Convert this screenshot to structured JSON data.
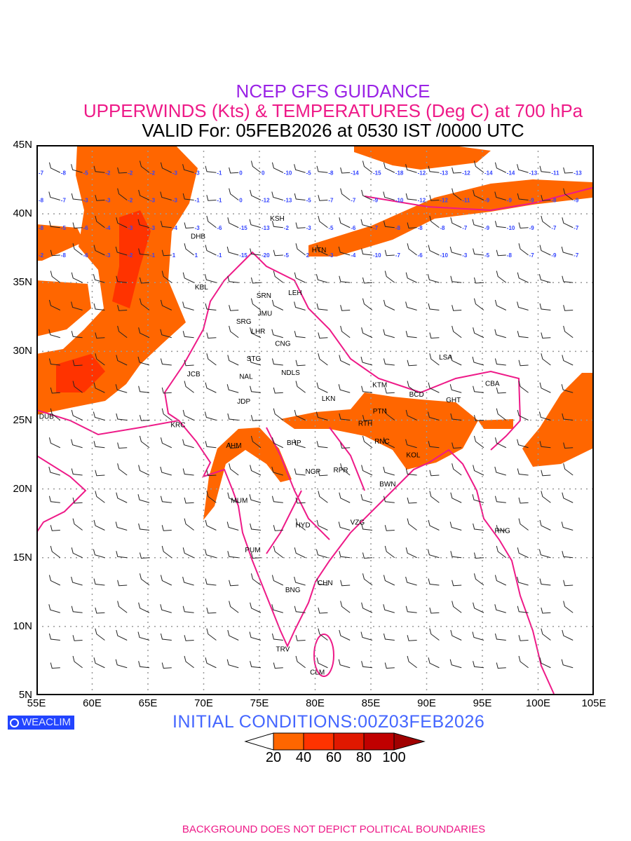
{
  "header": {
    "title": "NCEP GFS GUIDANCE",
    "subtitle": "UPPERWINDS (Kts) & TEMPERATURES (Deg C) at 700 hPa",
    "valid": "VALID For: 05FEB2026 at 0530 IST /0000 UTC"
  },
  "axes": {
    "lat_labels": [
      "45N",
      "40N",
      "35N",
      "30N",
      "25N",
      "20N",
      "15N",
      "10N",
      "5N"
    ],
    "lon_labels": [
      "55E",
      "60E",
      "65E",
      "70E",
      "75E",
      "80E",
      "85E",
      "90E",
      "95E",
      "100E",
      "105E"
    ],
    "lon_range": [
      55,
      105
    ],
    "lat_range": [
      5,
      45
    ]
  },
  "colors": {
    "boundary": "#ee1a88",
    "temperature": "#3344ff",
    "shade": [
      "#ff6600",
      "#ff3300",
      "#e01800",
      "#c00000",
      "#a00000"
    ]
  },
  "cities": [
    {
      "code": "KSH",
      "lon": 76.6,
      "lat": 39.6
    },
    {
      "code": "DHB",
      "lon": 69.5,
      "lat": 38.7
    },
    {
      "code": "HTN",
      "lon": 80.6,
      "lat": 37.4
    },
    {
      "code": "KBL",
      "lon": 69.8,
      "lat": 34.7
    },
    {
      "code": "SRN",
      "lon": 75.4,
      "lat": 34.1
    },
    {
      "code": "LEH",
      "lon": 78.2,
      "lat": 34.3
    },
    {
      "code": "JMU",
      "lon": 75.5,
      "lat": 32.8
    },
    {
      "code": "SRG",
      "lon": 73.6,
      "lat": 32.2
    },
    {
      "code": "LHR",
      "lon": 74.9,
      "lat": 31.7
    },
    {
      "code": "CNG",
      "lon": 77.1,
      "lat": 30.6
    },
    {
      "code": "STG",
      "lon": 74.5,
      "lat": 29.5
    },
    {
      "code": "NAL",
      "lon": 73.8,
      "lat": 28.2
    },
    {
      "code": "JCB",
      "lon": 69.1,
      "lat": 28.4
    },
    {
      "code": "NDLS",
      "lon": 77.8,
      "lat": 28.5
    },
    {
      "code": "JDP",
      "lon": 73.6,
      "lat": 26.4
    },
    {
      "code": "LKN",
      "lon": 81.2,
      "lat": 26.6
    },
    {
      "code": "KTM",
      "lon": 85.8,
      "lat": 27.6
    },
    {
      "code": "BCD",
      "lon": 89.1,
      "lat": 26.9
    },
    {
      "code": "GHT",
      "lon": 92.4,
      "lat": 26.5
    },
    {
      "code": "CBA",
      "lon": 95.9,
      "lat": 27.7
    },
    {
      "code": "LSA",
      "lon": 91.7,
      "lat": 29.6
    },
    {
      "code": "PTN",
      "lon": 85.8,
      "lat": 25.7
    },
    {
      "code": "RTH",
      "lon": 84.5,
      "lat": 24.8
    },
    {
      "code": "DUB",
      "lon": 55.9,
      "lat": 25.3
    },
    {
      "code": "KRC",
      "lon": 67.7,
      "lat": 24.7
    },
    {
      "code": "AHM",
      "lon": 72.7,
      "lat": 23.2
    },
    {
      "code": "BHP",
      "lon": 78.1,
      "lat": 23.4
    },
    {
      "code": "RNC",
      "lon": 86.0,
      "lat": 23.5
    },
    {
      "code": "KOL",
      "lon": 88.8,
      "lat": 22.5
    },
    {
      "code": "NGP",
      "lon": 79.8,
      "lat": 21.3
    },
    {
      "code": "RPR",
      "lon": 82.3,
      "lat": 21.4
    },
    {
      "code": "BWN",
      "lon": 86.5,
      "lat": 20.4
    },
    {
      "code": "MUM",
      "lon": 73.2,
      "lat": 19.2
    },
    {
      "code": "HYD",
      "lon": 78.9,
      "lat": 17.4
    },
    {
      "code": "VZG",
      "lon": 83.8,
      "lat": 17.6
    },
    {
      "code": "RNG",
      "lon": 96.8,
      "lat": 17.0
    },
    {
      "code": "PUM",
      "lon": 74.4,
      "lat": 15.6
    },
    {
      "code": "CHN",
      "lon": 80.9,
      "lat": 13.2
    },
    {
      "code": "BNG",
      "lon": 78.0,
      "lat": 12.7
    },
    {
      "code": "TRV",
      "lon": 77.1,
      "lat": 8.4
    },
    {
      "code": "CLM",
      "lon": 80.2,
      "lat": 6.7
    }
  ],
  "temperature_grid": {
    "lons_start": 55,
    "lon_step": 2,
    "rows": [
      {
        "lat": 43,
        "values": [
          -7,
          -8,
          -5,
          -2,
          -2,
          -2,
          -3,
          -3,
          -1,
          0,
          0,
          -10,
          -5,
          -8,
          -14,
          -15,
          -18,
          -12,
          -13,
          -12,
          -14,
          -14,
          -13,
          -11,
          -13,
          null
        ]
      },
      {
        "lat": 41,
        "values": [
          -8,
          -7,
          -3,
          -3,
          -2,
          -3,
          -3,
          -1,
          -1,
          0,
          -12,
          -13,
          -5,
          -7,
          -7,
          -9,
          -10,
          -12,
          -12,
          -11,
          -9,
          -9,
          -9,
          -8,
          -9,
          null
        ]
      },
      {
        "lat": 39,
        "values": [
          -8,
          -5,
          -6,
          -4,
          -3,
          -3,
          -4,
          -3,
          -6,
          -15,
          -13,
          -2,
          -3,
          -5,
          -6,
          -7,
          -8,
          -8,
          -8,
          -7,
          -9,
          -10,
          -9,
          -7,
          -7,
          null
        ]
      },
      {
        "lat": 37,
        "values": [
          -2,
          -8,
          -6,
          -3,
          -2,
          -1,
          1,
          1,
          -1,
          -15,
          -20,
          -5,
          2,
          -3,
          -4,
          -10,
          -7,
          -6,
          -10,
          -3,
          -5,
          -8,
          -7,
          -9,
          -7,
          null
        ]
      }
    ]
  },
  "wind_grid": {
    "lat_start": 43,
    "lat_end": 7,
    "lat_step": 2
  },
  "badge": {
    "label": "WEACLIM"
  },
  "initial_conditions": "INITIAL  CONDITIONS:00Z03FEB2026",
  "legend": {
    "levels": [
      "20",
      "40",
      "60",
      "80",
      "100"
    ]
  },
  "footer": "BACKGROUND DOES NOT DEPICT POLITICAL BOUNDARIES"
}
